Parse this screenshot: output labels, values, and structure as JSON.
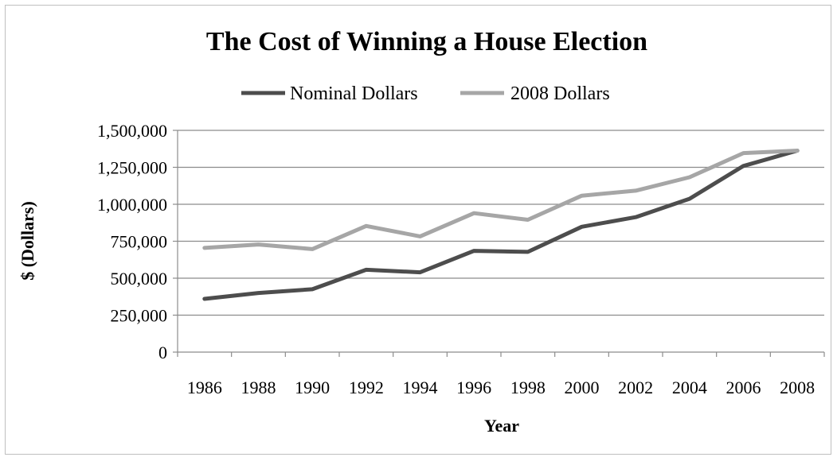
{
  "chart_data": {
    "type": "line",
    "title": "The Cost of Winning a House Election",
    "xlabel": "Year",
    "ylabel": "$ (Dollars)",
    "categories": [
      "1986",
      "1988",
      "1990",
      "1992",
      "1994",
      "1996",
      "1998",
      "2000",
      "2002",
      "2004",
      "2006",
      "2008"
    ],
    "series": [
      {
        "name": "Nominal Dollars",
        "color": "#4d4d4d",
        "values": [
          360000,
          400000,
          425000,
          557000,
          540000,
          685000,
          678000,
          848000,
          913000,
          1037000,
          1259000,
          1363000
        ]
      },
      {
        "name": "2008 Dollars",
        "color": "#a6a6a6",
        "values": [
          705000,
          728000,
          697000,
          853000,
          783000,
          940000,
          895000,
          1058000,
          1092000,
          1183000,
          1346000,
          1363000
        ]
      }
    ],
    "ylim": [
      0,
      1500000
    ],
    "yticks": [
      0,
      250000,
      500000,
      750000,
      1000000,
      1250000,
      1500000
    ],
    "ytick_labels": [
      "0",
      "250,000",
      "500,000",
      "750,000",
      "1,000,000",
      "1,250,000",
      "1,500,000"
    ],
    "grid": "horizontal",
    "legend_position": "top-center"
  }
}
